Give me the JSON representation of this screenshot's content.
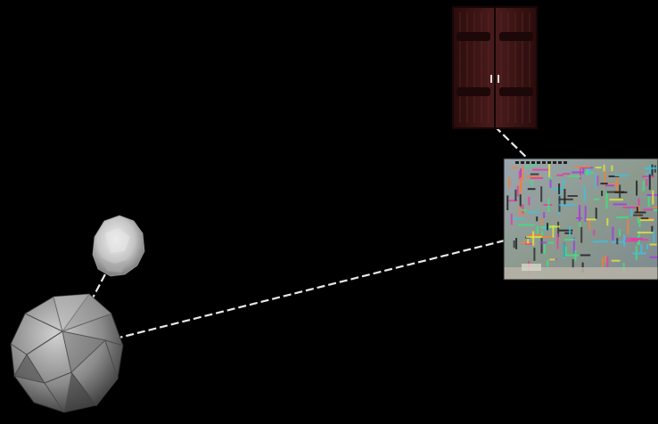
{
  "scene": {
    "background_color": "#000000",
    "connector_color": "#e8e8e8",
    "objects": [
      {
        "name": "wooden-double-door",
        "kind": "cabinet-door",
        "color": "#3a1414"
      },
      {
        "name": "graffiti-wall-panel",
        "kind": "textured-plane",
        "color": "#8a9a9a"
      },
      {
        "name": "small-rock-blob",
        "kind": "irregular-mesh",
        "color": "#d0d0d0"
      },
      {
        "name": "large-icosphere",
        "kind": "polyhedron",
        "color": "#8c8c8c"
      }
    ],
    "connections": [
      {
        "from": "wooden-double-door",
        "to": "graffiti-wall-panel"
      },
      {
        "from": "graffiti-wall-panel",
        "to": "large-icosphere"
      },
      {
        "from": "small-rock-blob",
        "to": "large-icosphere"
      },
      {
        "from": "graffiti-wall-panel",
        "to": "offscreen-right"
      }
    ]
  }
}
